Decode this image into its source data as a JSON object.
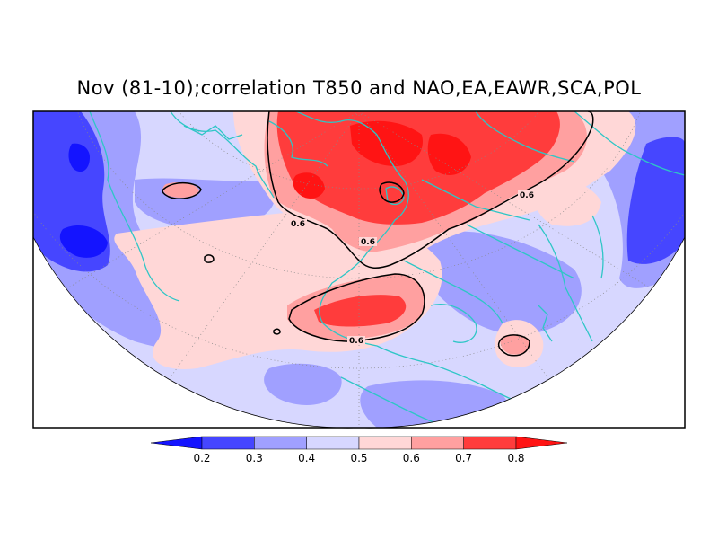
{
  "title": "Nov (81-10);correlation T850 and NAO,EA,EAWR,SCA,POL",
  "contour_label": "0.6",
  "colorbar": {
    "ticks": [
      "0.2",
      "0.3",
      "0.4",
      "0.5",
      "0.6",
      "0.7",
      "0.8"
    ],
    "colors": [
      "#1414ff",
      "#4646ff",
      "#a0a0ff",
      "#d7d7ff",
      "#ffd7d7",
      "#ffa0a0",
      "#ff3c3c",
      "#ff1414"
    ]
  },
  "colors": {
    "coast": "#2ec6c6",
    "contour": "#000000",
    "grid": "#888888",
    "frame": "#000000"
  }
}
